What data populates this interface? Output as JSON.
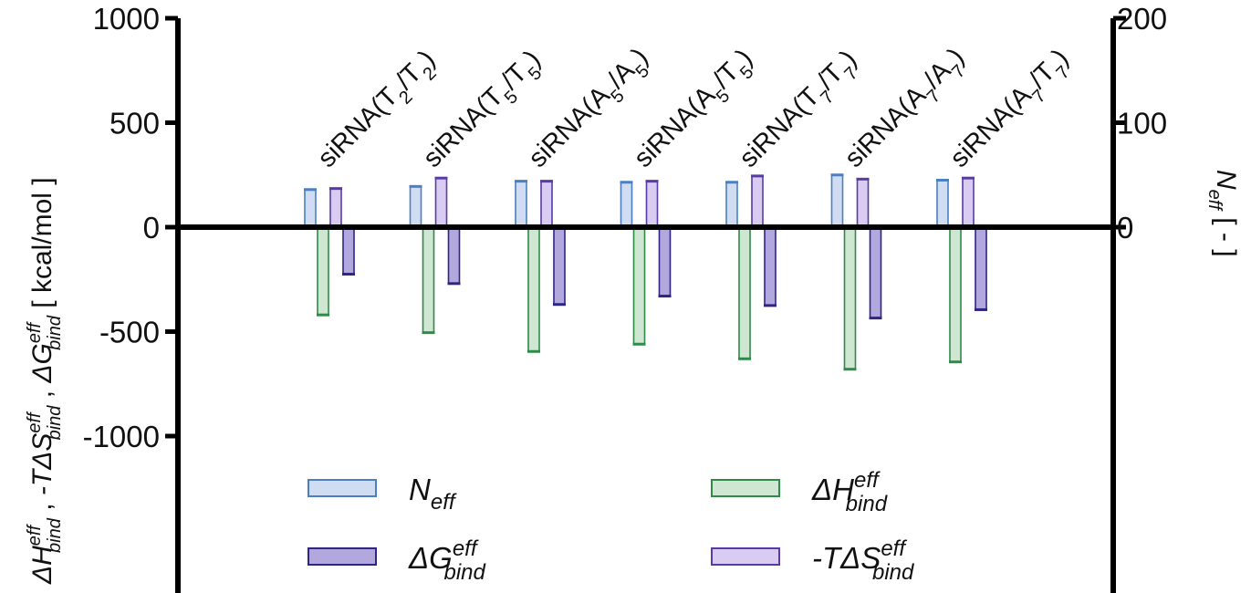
{
  "chart_data": {
    "type": "bar",
    "categories": [
      {
        "base": "siRNA(",
        "s1": "2",
        "mid": "/",
        "s2": "2",
        "end": ")",
        "a": "T",
        "b": "T"
      },
      {
        "base": "siRNA(",
        "s1": "5",
        "mid": "/",
        "s2": "5",
        "end": ")",
        "a": "T",
        "b": "T"
      },
      {
        "base": "siRNA(",
        "s1": "5",
        "mid": "/",
        "s2": "5",
        "end": ")",
        "a": "A",
        "b": "A"
      },
      {
        "base": "siRNA(",
        "s1": "5",
        "mid": "/",
        "s2": "5",
        "end": ")",
        "a": "A",
        "b": "T"
      },
      {
        "base": "siRNA(",
        "s1": "7",
        "mid": "/",
        "s2": "7",
        "end": ")",
        "a": "T",
        "b": "T"
      },
      {
        "base": "siRNA(",
        "s1": "7",
        "mid": "/",
        "s2": "7",
        "end": ")",
        "a": "A",
        "b": "A"
      },
      {
        "base": "siRNA(",
        "s1": "7",
        "mid": "/",
        "s2": "7",
        "end": ")",
        "a": "A",
        "b": "T"
      }
    ],
    "category_labels": [
      "siRNA(T2/T2)",
      "siRNA(T5/T5)",
      "siRNA(A5/A5)",
      "siRNA(A5/T5)",
      "siRNA(T7/T7)",
      "siRNA(A7/A7)",
      "siRNA(A7/T7)"
    ],
    "series": [
      {
        "key": "neff",
        "name": "N_eff",
        "axis": "right",
        "values": [
          36,
          39,
          44,
          43,
          43,
          50,
          45
        ],
        "fill": "#cfdcf2",
        "stroke": "#4a7fc1"
      },
      {
        "key": "dH",
        "name": "ΔH_bind^eff",
        "axis": "left",
        "values": [
          -420,
          -505,
          -595,
          -560,
          -630,
          -680,
          -645
        ],
        "fill": "#cfe6d3",
        "stroke": "#2e8b48"
      },
      {
        "key": "TdS",
        "name": "-TΔS_bind^eff",
        "axis": "left",
        "values": [
          185,
          235,
          220,
          220,
          245,
          230,
          235
        ],
        "fill": "#d8ccf3",
        "stroke": "#5a3aa6"
      },
      {
        "key": "dG",
        "name": "ΔG_bind^eff",
        "axis": "left",
        "values": [
          -225,
          -270,
          -370,
          -330,
          -375,
          -435,
          -395
        ],
        "fill": "#b2a8de",
        "stroke": "#2e2585"
      }
    ],
    "left_axis": {
      "label_parts": {
        "dH": "ΔH",
        "tds": "-TΔS",
        "dG": "ΔG",
        "sup": "eff",
        "sub": "bind",
        "sep": " , ",
        "unit": "[ kcal/mol ]"
      },
      "ylim": [
        -1700,
        1000
      ],
      "ticks": [
        1000,
        500,
        0,
        -500,
        -1000
      ],
      "tick_labels": [
        "1000",
        "500",
        "0",
        "-500",
        "-1000"
      ]
    },
    "right_axis": {
      "label_parts": {
        "main": "N",
        "sub": "eff",
        "unit": "[ - ]"
      },
      "ylim": [
        -340,
        200
      ],
      "ticks": [
        200,
        100,
        0
      ],
      "tick_labels": [
        "200",
        "100",
        "0"
      ]
    },
    "legend": {
      "placement": "bottom",
      "items": [
        {
          "series": "neff",
          "main": "N",
          "sub": "eff",
          "sup": ""
        },
        {
          "series": "dH",
          "main": "ΔH",
          "sub": "bind",
          "sup": "eff"
        },
        {
          "series": "dG",
          "main": "ΔG",
          "sub": "bind",
          "sup": "eff"
        },
        {
          "series": "TdS",
          "main": "-TΔS",
          "sub": "bind",
          "sup": "eff"
        }
      ]
    },
    "grid": false
  }
}
